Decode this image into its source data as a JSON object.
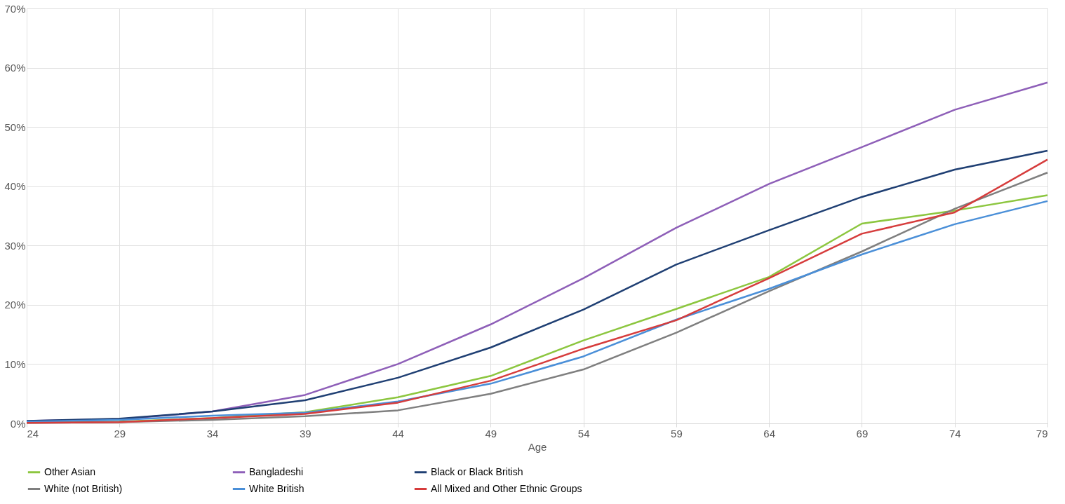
{
  "chart_data": {
    "type": "line",
    "xlabel": "Age",
    "x": [
      24,
      29,
      34,
      39,
      44,
      49,
      54,
      59,
      64,
      69,
      74,
      79
    ],
    "xlim": [
      24,
      79
    ],
    "xticks": [
      24,
      29,
      34,
      39,
      44,
      49,
      54,
      59,
      64,
      69,
      74,
      79
    ],
    "ylim": [
      0,
      70
    ],
    "yticks": [
      {
        "value": 0,
        "label": "0%"
      },
      {
        "value": 10,
        "label": "10%"
      },
      {
        "value": 20,
        "label": "20%"
      },
      {
        "value": 30,
        "label": "30%"
      },
      {
        "value": 40,
        "label": "40%"
      },
      {
        "value": 50,
        "label": "50%"
      },
      {
        "value": 60,
        "label": "60%"
      },
      {
        "value": 70,
        "label": "70%"
      }
    ],
    "grid": true,
    "legend": "bottom",
    "marker": "none",
    "line_style": "solid",
    "series": [
      {
        "name": "Other Asian",
        "color": "#8cc63f",
        "values": [
          0.2,
          0.3,
          0.9,
          1.9,
          4.4,
          8.0,
          14.0,
          19.3,
          24.7,
          33.7,
          35.9,
          38.5
        ]
      },
      {
        "name": "Bangladeshi",
        "color": "#8e5fb8",
        "values": [
          0.4,
          0.7,
          2.0,
          4.8,
          10.0,
          16.7,
          24.5,
          33.0,
          40.4,
          46.6,
          52.9,
          57.5
        ]
      },
      {
        "name": "Black or Black British",
        "color": "#1f3f73",
        "values": [
          0.4,
          0.8,
          2.0,
          3.9,
          7.7,
          12.8,
          19.2,
          26.8,
          32.6,
          38.2,
          42.8,
          46.0
        ]
      },
      {
        "name": "White (not British)",
        "color": "#7f7f7f",
        "values": [
          0.1,
          0.2,
          0.6,
          1.2,
          2.2,
          5.0,
          9.1,
          15.3,
          22.3,
          29.0,
          36.2,
          42.3
        ]
      },
      {
        "name": "White British",
        "color": "#4a8fd8",
        "values": [
          0.3,
          0.6,
          1.3,
          1.8,
          3.7,
          6.7,
          11.3,
          17.5,
          22.7,
          28.5,
          33.6,
          37.5
        ]
      },
      {
        "name": "All Mixed and Other Ethnic Groups",
        "color": "#d63c3c",
        "values": [
          0.1,
          0.2,
          0.9,
          1.6,
          3.5,
          7.2,
          12.6,
          17.4,
          24.5,
          32.0,
          35.6,
          44.5
        ]
      }
    ]
  }
}
